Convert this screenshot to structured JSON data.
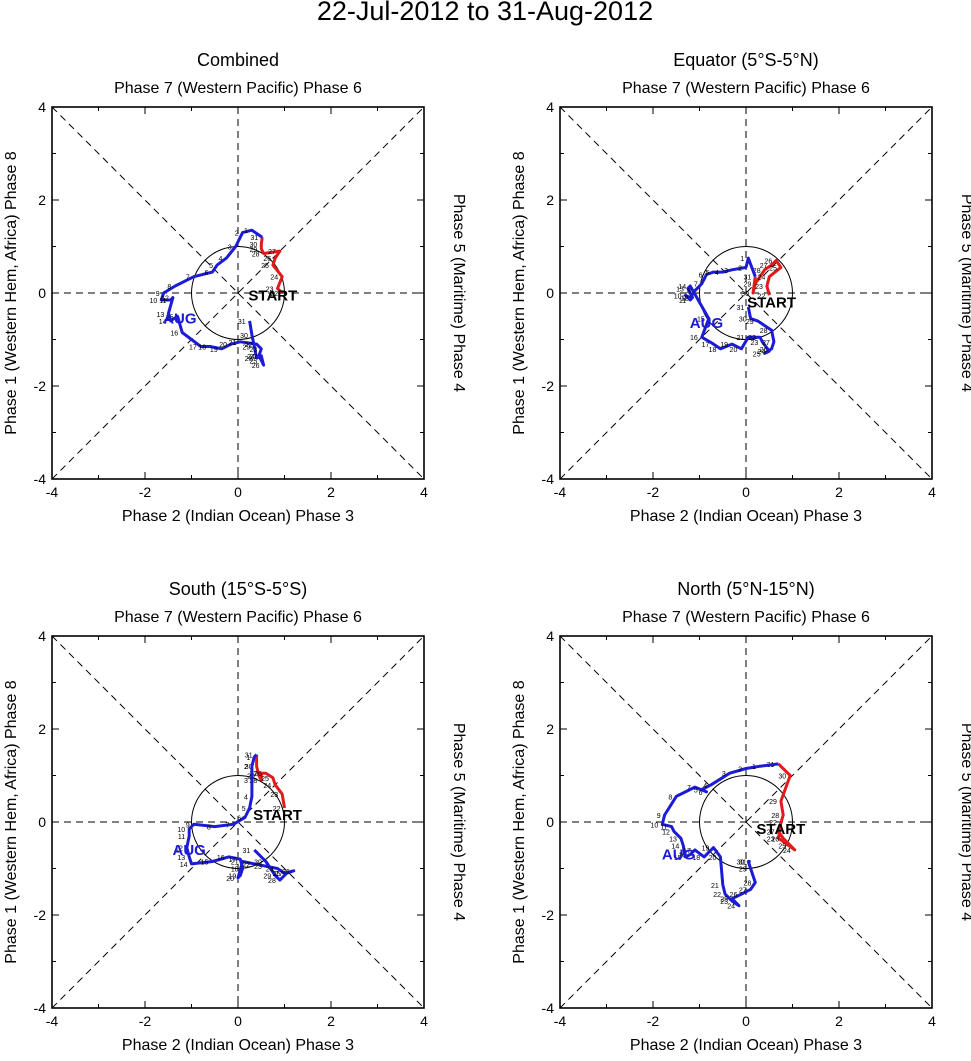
{
  "title": "22-Jul-2012 to 31-Aug-2012",
  "axis_ticks": [
    "-4",
    "-2",
    "0",
    "2",
    "4"
  ],
  "colors": {
    "july": "#e31a1c",
    "august": "#1c1cd6",
    "axis": "#000000"
  },
  "chart_data": [
    {
      "type": "line",
      "subtitle": "Combined",
      "top_label": "Phase 7 (Western Pacific) Phase 6",
      "bottom_label": "Phase 2 (Indian Ocean) Phase 3",
      "left_label": "Phase 1 (Western Hem, Africa) Phase 8",
      "right_label": "Phase 5 (Maritime) Phase 4",
      "xlim": [
        -4,
        4
      ],
      "ylim": [
        -4,
        4
      ],
      "start_label": "START",
      "end_label": "AUG",
      "start_point": [
        0.75,
        -0.05
      ],
      "end_point": [
        -1.25,
        -0.55
      ],
      "series": [
        {
          "name": "July",
          "color": "#e31a1c",
          "days": [
            "22",
            "23",
            "24",
            "25",
            "26",
            "27",
            "28",
            "29",
            "30",
            "31"
          ],
          "points": [
            [
              0.95,
              0.0
            ],
            [
              0.85,
              0.1
            ],
            [
              0.95,
              0.35
            ],
            [
              0.75,
              0.6
            ],
            [
              0.8,
              0.75
            ],
            [
              0.9,
              0.9
            ],
            [
              0.55,
              0.85
            ],
            [
              0.5,
              0.95
            ],
            [
              0.5,
              1.05
            ],
            [
              0.52,
              1.2
            ]
          ]
        },
        {
          "name": "August",
          "color": "#1c1cd6",
          "days": [
            "1",
            "2",
            "3",
            "4",
            "5",
            "6",
            "7",
            "8",
            "9",
            "10",
            "11",
            "12",
            "13",
            "14",
            "15",
            "16",
            "17",
            "18",
            "19",
            "20",
            "21",
            "22",
            "23",
            "24",
            "25",
            "26",
            "27",
            "28",
            "29",
            "30",
            "31"
          ],
          "points": [
            [
              0.3,
              1.35
            ],
            [
              0.1,
              1.3
            ],
            [
              -0.05,
              1.0
            ],
            [
              -0.25,
              0.75
            ],
            [
              -0.45,
              0.6
            ],
            [
              -0.55,
              0.45
            ],
            [
              -0.95,
              0.35
            ],
            [
              -1.35,
              0.15
            ],
            [
              -1.6,
              0.0
            ],
            [
              -1.65,
              -0.15
            ],
            [
              -1.45,
              -0.15
            ],
            [
              -1.4,
              -0.1
            ],
            [
              -1.5,
              -0.45
            ],
            [
              -1.45,
              -0.6
            ],
            [
              -1.3,
              -0.5
            ],
            [
              -1.2,
              -0.85
            ],
            [
              -0.8,
              -1.15
            ],
            [
              -0.6,
              -1.15
            ],
            [
              -0.35,
              -1.2
            ],
            [
              -0.15,
              -1.1
            ],
            [
              0.05,
              -1.05
            ],
            [
              0.4,
              -1.1
            ],
            [
              0.5,
              -1.2
            ],
            [
              0.45,
              -1.35
            ],
            [
              0.5,
              -1.45
            ],
            [
              0.55,
              -1.55
            ],
            [
              0.5,
              -1.35
            ],
            [
              0.4,
              -1.4
            ],
            [
              0.35,
              -1.15
            ],
            [
              0.3,
              -0.9
            ],
            [
              0.25,
              -0.6
            ]
          ]
        }
      ]
    },
    {
      "type": "line",
      "subtitle": "Equator (5°S-5°N)",
      "top_label": "Phase 7 (Western Pacific) Phase 6",
      "bottom_label": "Phase 2 (Indian Ocean) Phase 3",
      "left_label": "Phase 1 (Western Hem, Africa) Phase 8",
      "right_label": "Phase 5 (Maritime) Phase 4",
      "xlim": [
        -4,
        4
      ],
      "ylim": [
        -4,
        4
      ],
      "start_label": "START",
      "end_label": "AUG",
      "start_point": [
        0.55,
        -0.2
      ],
      "end_point": [
        -0.85,
        -0.65
      ],
      "series": [
        {
          "name": "July",
          "color": "#e31a1c",
          "days": [
            "22",
            "23",
            "24",
            "25",
            "26",
            "27",
            "28",
            "29",
            "30",
            "31"
          ],
          "points": [
            [
              0.5,
              -0.05
            ],
            [
              0.45,
              0.15
            ],
            [
              0.5,
              0.35
            ],
            [
              0.75,
              0.55
            ],
            [
              0.65,
              0.7
            ],
            [
              0.55,
              0.6
            ],
            [
              0.4,
              0.5
            ],
            [
              0.2,
              0.2
            ],
            [
              0.15,
              0.0
            ],
            [
              0.2,
              0.35
            ]
          ]
        },
        {
          "name": "August",
          "color": "#1c1cd6",
          "days": [
            "1",
            "2",
            "3",
            "4",
            "5",
            "6",
            "7",
            "8",
            "9",
            "10",
            "11",
            "12",
            "13",
            "14",
            "15",
            "16",
            "17",
            "18",
            "19",
            "20",
            "21",
            "22",
            "23",
            "24",
            "25",
            "26",
            "27",
            "28",
            "29",
            "30",
            "31"
          ],
          "points": [
            [
              0.05,
              0.75
            ],
            [
              0.0,
              0.55
            ],
            [
              -0.3,
              0.5
            ],
            [
              -0.5,
              0.45
            ],
            [
              -0.7,
              0.45
            ],
            [
              -0.85,
              0.4
            ],
            [
              -0.95,
              0.2
            ],
            [
              -1.1,
              0.05
            ],
            [
              -1.2,
              -0.1
            ],
            [
              -1.3,
              -0.05
            ],
            [
              -1.2,
              -0.15
            ],
            [
              -1.15,
              -0.1
            ],
            [
              -1.25,
              0.1
            ],
            [
              -1.2,
              0.15
            ],
            [
              -0.8,
              -0.55
            ],
            [
              -0.95,
              -0.95
            ],
            [
              -0.7,
              -1.1
            ],
            [
              -0.55,
              -1.2
            ],
            [
              -0.3,
              -1.1
            ],
            [
              -0.1,
              -1.2
            ],
            [
              0.05,
              -0.95
            ],
            [
              0.3,
              -0.95
            ],
            [
              0.35,
              -1.05
            ],
            [
              0.5,
              -1.25
            ],
            [
              0.4,
              -1.3
            ],
            [
              0.55,
              -1.2
            ],
            [
              0.6,
              -1.05
            ],
            [
              0.55,
              -0.8
            ],
            [
              0.25,
              -0.6
            ],
            [
              0.1,
              -0.55
            ],
            [
              0.05,
              -0.3
            ]
          ]
        }
      ]
    },
    {
      "type": "line",
      "subtitle": "South (15°S-5°S)",
      "top_label": "Phase 7 (Western Pacific) Phase 6",
      "bottom_label": "Phase 2 (Indian Ocean) Phase 3",
      "left_label": "Phase 1 (Western Hem, Africa) Phase 8",
      "right_label": "Phase 5 (Maritime) Phase 4",
      "xlim": [
        -4,
        4
      ],
      "ylim": [
        -4,
        4
      ],
      "start_label": "START",
      "end_label": "AUG",
      "start_point": [
        0.85,
        0.15
      ],
      "end_point": [
        -1.05,
        -0.6
      ],
      "series": [
        {
          "name": "July",
          "color": "#e31a1c",
          "days": [
            "22",
            "23",
            "24",
            "25",
            "26",
            "27",
            "28",
            "29",
            "30",
            "31"
          ],
          "points": [
            [
              1.0,
              0.3
            ],
            [
              0.95,
              0.6
            ],
            [
              0.8,
              0.8
            ],
            [
              0.75,
              0.95
            ],
            [
              0.6,
              1.05
            ],
            [
              0.5,
              1.05
            ],
            [
              0.5,
              0.9
            ],
            [
              0.45,
              1.0
            ],
            [
              0.4,
              1.2
            ],
            [
              0.4,
              1.45
            ]
          ]
        },
        {
          "name": "August",
          "color": "#1c1cd6",
          "days": [
            "1",
            "2",
            "3",
            "4",
            "5",
            "6",
            "7",
            "8",
            "9",
            "10",
            "11",
            "12",
            "13",
            "14",
            "15",
            "16",
            "17",
            "18",
            "19",
            "20",
            "21",
            "22",
            "23",
            "24",
            "25",
            "26",
            "27",
            "28",
            "29",
            "30",
            "31"
          ],
          "points": [
            [
              0.35,
              1.4
            ],
            [
              0.3,
              1.2
            ],
            [
              0.3,
              0.9
            ],
            [
              0.3,
              0.55
            ],
            [
              0.25,
              0.3
            ],
            [
              0.15,
              0.1
            ],
            [
              -0.1,
              -0.05
            ],
            [
              -0.5,
              -0.1
            ],
            [
              -0.95,
              -0.05
            ],
            [
              -1.05,
              -0.15
            ],
            [
              -1.05,
              -0.3
            ],
            [
              -1.1,
              -0.55
            ],
            [
              -1.05,
              -0.75
            ],
            [
              -1.0,
              -0.9
            ],
            [
              -0.55,
              -0.85
            ],
            [
              -0.2,
              -0.75
            ],
            [
              0.05,
              -0.8
            ],
            [
              0.1,
              -1.0
            ],
            [
              0.05,
              -1.15
            ],
            [
              0.0,
              -1.2
            ],
            [
              0.1,
              -0.85
            ],
            [
              0.35,
              -0.9
            ],
            [
              0.6,
              -0.95
            ],
            [
              0.85,
              -1.0
            ],
            [
              1.0,
              -1.1
            ],
            [
              1.2,
              -1.05
            ],
            [
              1.05,
              -1.1
            ],
            [
              0.9,
              -1.25
            ],
            [
              0.8,
              -1.15
            ],
            [
              0.6,
              -0.85
            ],
            [
              0.35,
              -0.6
            ]
          ]
        }
      ]
    },
    {
      "type": "line",
      "subtitle": "North (5°N-15°N)",
      "top_label": "Phase 7 (Western Pacific) Phase 6",
      "bottom_label": "Phase 2 (Indian Ocean) Phase 3",
      "left_label": "Phase 1 (Western Hem, Africa) Phase 8",
      "right_label": "Phase 5 (Maritime) Phase 4",
      "xlim": [
        -4,
        4
      ],
      "ylim": [
        -4,
        4
      ],
      "start_label": "START",
      "end_label": "AUG",
      "start_point": [
        0.75,
        -0.15
      ],
      "end_point": [
        -1.45,
        -0.7
      ],
      "series": [
        {
          "name": "July",
          "color": "#e31a1c",
          "days": [
            "22",
            "23",
            "24",
            "25",
            "26",
            "27",
            "28",
            "29",
            "30",
            "31"
          ],
          "points": [
            [
              0.75,
              0.0
            ],
            [
              0.7,
              -0.35
            ],
            [
              1.05,
              -0.6
            ],
            [
              0.95,
              -0.5
            ],
            [
              0.8,
              -0.35
            ],
            [
              0.7,
              -0.2
            ],
            [
              0.8,
              0.15
            ],
            [
              0.75,
              0.45
            ],
            [
              0.95,
              1.0
            ],
            [
              0.7,
              1.25
            ]
          ]
        },
        {
          "name": "August",
          "color": "#1c1cd6",
          "days": [
            "1",
            "2",
            "3",
            "4",
            "5",
            "6",
            "7",
            "8",
            "9",
            "10",
            "11",
            "12",
            "13",
            "14",
            "15",
            "16",
            "17",
            "18",
            "19",
            "20",
            "21",
            "22",
            "23",
            "24",
            "25",
            "26",
            "27",
            "28",
            "29",
            "30",
            "31"
          ],
          "points": [
            [
              0.3,
              1.2
            ],
            [
              0.0,
              1.15
            ],
            [
              -0.35,
              1.05
            ],
            [
              -0.75,
              0.8
            ],
            [
              -0.95,
              0.7
            ],
            [
              -0.85,
              0.65
            ],
            [
              -1.1,
              0.75
            ],
            [
              -1.5,
              0.55
            ],
            [
              -1.75,
              0.15
            ],
            [
              -1.8,
              -0.05
            ],
            [
              -1.6,
              -0.1
            ],
            [
              -1.55,
              -0.2
            ],
            [
              -1.4,
              -0.35
            ],
            [
              -1.35,
              -0.5
            ],
            [
              -1.3,
              -0.75
            ],
            [
              -1.2,
              -0.7
            ],
            [
              -1.1,
              -0.6
            ],
            [
              -0.9,
              -0.75
            ],
            [
              -0.7,
              -0.55
            ],
            [
              -0.55,
              -0.75
            ],
            [
              -0.5,
              -1.35
            ],
            [
              -0.45,
              -1.55
            ],
            [
              -0.3,
              -1.7
            ],
            [
              -0.15,
              -1.8
            ],
            [
              -0.3,
              -1.65
            ],
            [
              -0.1,
              -1.55
            ],
            [
              0.1,
              -1.45
            ],
            [
              0.2,
              -1.3
            ],
            [
              0.1,
              -1.0
            ],
            [
              0.05,
              -0.85
            ],
            [
              0.1,
              -0.85
            ]
          ]
        }
      ]
    }
  ]
}
